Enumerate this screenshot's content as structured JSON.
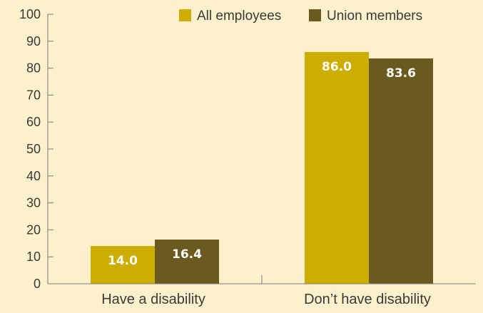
{
  "chart_data": {
    "type": "bar",
    "title": "",
    "xlabel": "",
    "ylabel": "",
    "ylim": [
      0,
      100
    ],
    "yticks": [
      0,
      10,
      20,
      30,
      40,
      50,
      60,
      70,
      80,
      90,
      100
    ],
    "grid": false,
    "legend_position": "top-right",
    "categories": [
      "Have a disability",
      "Don’t have disability"
    ],
    "series": [
      {
        "name": "All employees",
        "color": "#cdae00",
        "values": [
          14.0,
          86.0
        ],
        "labels": [
          "14.0",
          "86.0"
        ]
      },
      {
        "name": "Union members",
        "color": "#6b5a1f",
        "values": [
          16.4,
          83.6
        ],
        "labels": [
          "16.4",
          "83.6"
        ]
      }
    ]
  }
}
